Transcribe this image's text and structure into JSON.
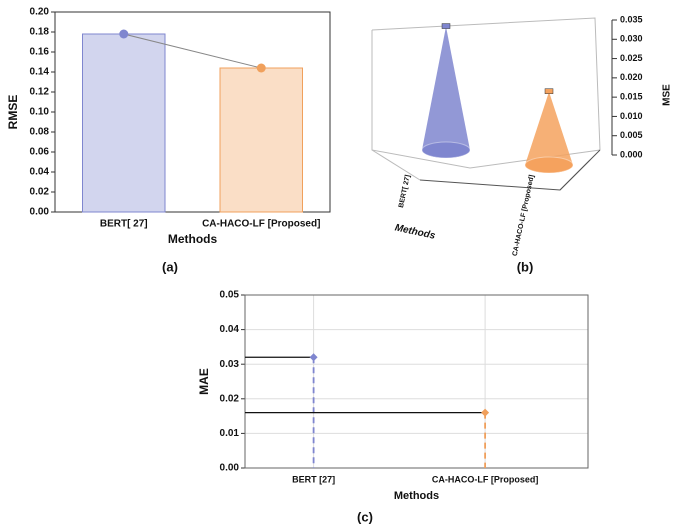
{
  "chart_data": [
    {
      "type": "bar",
      "caption": "(a)",
      "x_label": "Methods",
      "y_label": "RMSE",
      "categories": [
        "BERT[ 27]",
        "CA-HACO-LF [Proposed]"
      ],
      "values": [
        0.178,
        0.144
      ],
      "colors": [
        "#7f86cf",
        "#f0a05c"
      ],
      "ylim": [
        0,
        0.2
      ],
      "yticks": [
        {
          "value": 0,
          "label": "0.00"
        },
        {
          "value": 0.02,
          "label": "0.02"
        },
        {
          "value": 0.04,
          "label": "0.04"
        },
        {
          "value": 0.06,
          "label": "0.06"
        },
        {
          "value": 0.08,
          "label": "0.08"
        },
        {
          "value": 0.1,
          "label": "0.10"
        },
        {
          "value": 0.12,
          "label": "0.12"
        },
        {
          "value": 0.14,
          "label": "0.14"
        },
        {
          "value": 0.16,
          "label": "0.16"
        },
        {
          "value": 0.18,
          "label": "0.18"
        },
        {
          "value": 0.2,
          "label": "0.20"
        }
      ]
    },
    {
      "type": "cone",
      "caption": "(b)",
      "x_label": "Methods",
      "y_label": "MSE",
      "categories": [
        "BERT[ 27]",
        "CA-HACO-LF [Proposed]"
      ],
      "values": [
        0.032,
        0.019
      ],
      "colors": [
        "#7f86cf",
        "#f5a25e"
      ],
      "ylim": [
        0,
        0.035
      ],
      "yticks": [
        {
          "value": 0,
          "label": "0.000"
        },
        {
          "value": 0.005,
          "label": "0.005"
        },
        {
          "value": 0.01,
          "label": "0.010"
        },
        {
          "value": 0.015,
          "label": "0.015"
        },
        {
          "value": 0.02,
          "label": "0.020"
        },
        {
          "value": 0.025,
          "label": "0.025"
        },
        {
          "value": 0.03,
          "label": "0.030"
        },
        {
          "value": 0.035,
          "label": "0.035"
        }
      ]
    },
    {
      "type": "lollipop",
      "caption": "(c)",
      "x_label": "Methods",
      "y_label": "MAE",
      "categories": [
        "BERT [27]",
        "CA-HACO-LF [Proposed]"
      ],
      "values": [
        0.032,
        0.016
      ],
      "colors": [
        "#7f86cf",
        "#f0a05c"
      ],
      "ylim": [
        0,
        0.05
      ],
      "grid": true,
      "yticks": [
        {
          "value": 0,
          "label": "0.00"
        },
        {
          "value": 0.01,
          "label": "0.01"
        },
        {
          "value": 0.02,
          "label": "0.02"
        },
        {
          "value": 0.03,
          "label": "0.03"
        },
        {
          "value": 0.04,
          "label": "0.04"
        },
        {
          "value": 0.05,
          "label": "0.05"
        }
      ]
    }
  ]
}
